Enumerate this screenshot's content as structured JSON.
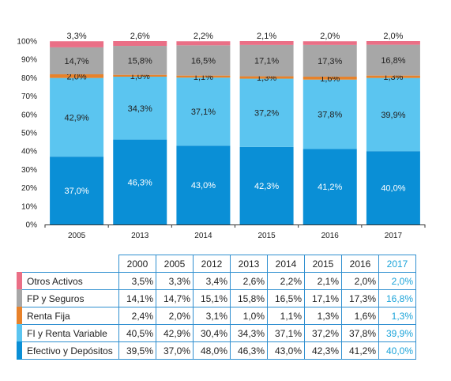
{
  "chart_data": {
    "type": "bar",
    "stacked": true,
    "categories": [
      "2005",
      "2013",
      "2014",
      "2015",
      "2016",
      "2017"
    ],
    "ylim": [
      0,
      100
    ],
    "yticks": [
      "0%",
      "10%",
      "20%",
      "30%",
      "40%",
      "50%",
      "60%",
      "70%",
      "80%",
      "90%",
      "100%"
    ],
    "series": [
      {
        "name": "Efectivo y Depósitos",
        "color": "#0a8fd6",
        "values": [
          37.0,
          46.3,
          43.0,
          42.3,
          41.2,
          40.0
        ],
        "labels": [
          "37,0%",
          "46,3%",
          "43,0%",
          "42,3%",
          "41,2%",
          "40,0%"
        ]
      },
      {
        "name": "FI y Renta Variable",
        "color": "#5bc5f0",
        "values": [
          42.9,
          34.3,
          37.1,
          37.2,
          37.8,
          39.9
        ],
        "labels": [
          "42,9%",
          "34,3%",
          "37,1%",
          "37,2%",
          "37,8%",
          "39,9%"
        ]
      },
      {
        "name": "Renta Fija",
        "color": "#e8822a",
        "values": [
          2.0,
          1.0,
          1.1,
          1.3,
          1.6,
          1.3
        ],
        "labels": [
          "2,0%",
          "1,0%",
          "1,1%",
          "1,3%",
          "1,6%",
          "1,3%"
        ]
      },
      {
        "name": "FP y Seguros",
        "color": "#a7a7a7",
        "values": [
          14.7,
          15.8,
          16.5,
          17.1,
          17.3,
          16.8
        ],
        "labels": [
          "14,7%",
          "15,8%",
          "16,5%",
          "17,1%",
          "17,3%",
          "16,8%"
        ]
      },
      {
        "name": "Otros Activos",
        "color": "#ea6f86",
        "values": [
          3.3,
          2.6,
          2.2,
          2.1,
          2.0,
          2.0
        ],
        "labels": [
          "3,3%",
          "2,6%",
          "2,2%",
          "2,1%",
          "2,0%",
          "2,0%"
        ]
      }
    ]
  },
  "table": {
    "years": [
      "2000",
      "2005",
      "2012",
      "2013",
      "2014",
      "2015",
      "2016",
      "2017"
    ],
    "rows": [
      {
        "label": "Otros Activos",
        "color": "#ea6f86",
        "values": [
          "3,5%",
          "3,3%",
          "3,4%",
          "2,6%",
          "2,2%",
          "2,1%",
          "2,0%",
          "2,0%"
        ]
      },
      {
        "label": "FP y Seguros",
        "color": "#a7a7a7",
        "values": [
          "14,1%",
          "14,7%",
          "15,1%",
          "15,8%",
          "16,5%",
          "17,1%",
          "17,3%",
          "16,8%"
        ]
      },
      {
        "label": "Renta Fija",
        "color": "#e8822a",
        "values": [
          "2,4%",
          "2,0%",
          "3,1%",
          "1,0%",
          "1,1%",
          "1,3%",
          "1,6%",
          "1,3%"
        ]
      },
      {
        "label": "FI y Renta Variable",
        "color": "#5bc5f0",
        "values": [
          "40,5%",
          "42,9%",
          "30,4%",
          "34,3%",
          "37,1%",
          "37,2%",
          "37,8%",
          "39,9%"
        ]
      },
      {
        "label": "Efectivo y Depósitos",
        "color": "#0a8fd6",
        "values": [
          "39,5%",
          "37,0%",
          "48,0%",
          "46,3%",
          "43,0%",
          "42,3%",
          "41,2%",
          "40,0%"
        ]
      }
    ]
  }
}
